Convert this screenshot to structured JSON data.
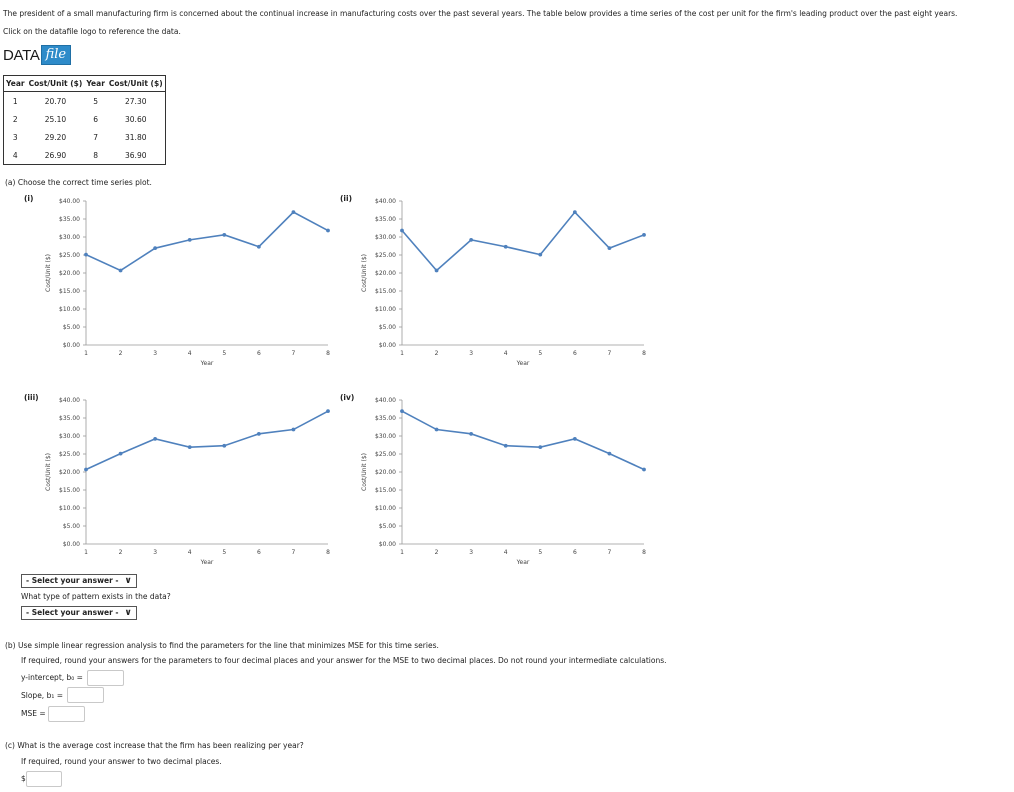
{
  "intro_text": "The president of a small manufacturing firm is concerned about the continual increase in manufacturing costs over the past several years. The table below provides a time series of the cost per unit for the firm's leading product over the past eight years.",
  "intro_link_text": "Click on the datafile logo to reference the data.",
  "datafile": {
    "label": "DATA",
    "file": "file"
  },
  "table": {
    "headers": [
      "Year",
      "Cost/Unit ($)",
      "Year",
      "Cost/Unit ($)"
    ],
    "rows": [
      [
        "1",
        "20.70",
        "5",
        "27.30"
      ],
      [
        "2",
        "25.10",
        "6",
        "30.60"
      ],
      [
        "3",
        "29.20",
        "7",
        "31.80"
      ],
      [
        "4",
        "26.90",
        "8",
        "36.90"
      ]
    ]
  },
  "part_a": {
    "prompt": "(a) Choose the correct time series plot.",
    "select_placeholder": "- Select your answer -",
    "pattern_question": "What type of pattern exists in the data?"
  },
  "chart_data": [
    {
      "id": "i",
      "label": "(i)",
      "type": "line",
      "x": [
        1,
        2,
        3,
        4,
        5,
        6,
        7,
        8
      ],
      "values": [
        25.1,
        20.7,
        26.9,
        29.2,
        30.6,
        27.3,
        36.9,
        31.8
      ],
      "xlabel": "Year",
      "ylabel": "Cost/Unit ($)",
      "yticks": [
        "$0.00",
        "$5.00",
        "$10.00",
        "$15.00",
        "$20.00",
        "$25.00",
        "$30.00",
        "$35.00",
        "$40.00"
      ],
      "ylim": [
        0,
        40
      ]
    },
    {
      "id": "ii",
      "label": "(ii)",
      "type": "line",
      "x": [
        1,
        2,
        3,
        4,
        5,
        6,
        7,
        8
      ],
      "values": [
        31.8,
        20.7,
        29.2,
        27.3,
        25.1,
        36.9,
        26.9,
        30.6
      ],
      "xlabel": "Year",
      "ylabel": "Cost/Unit ($)",
      "yticks": [
        "$0.00",
        "$5.00",
        "$10.00",
        "$15.00",
        "$20.00",
        "$25.00",
        "$30.00",
        "$35.00",
        "$40.00"
      ],
      "ylim": [
        0,
        40
      ]
    },
    {
      "id": "iii",
      "label": "(iii)",
      "type": "line",
      "x": [
        1,
        2,
        3,
        4,
        5,
        6,
        7,
        8
      ],
      "values": [
        20.7,
        25.1,
        29.2,
        26.9,
        27.3,
        30.6,
        31.8,
        36.9
      ],
      "xlabel": "Year",
      "ylabel": "Cost/Unit ($)",
      "yticks": [
        "$0.00",
        "$5.00",
        "$10.00",
        "$15.00",
        "$20.00",
        "$25.00",
        "$30.00",
        "$35.00",
        "$40.00"
      ],
      "ylim": [
        0,
        40
      ]
    },
    {
      "id": "iv",
      "label": "(iv)",
      "type": "line",
      "x": [
        1,
        2,
        3,
        4,
        5,
        6,
        7,
        8
      ],
      "values": [
        36.9,
        31.8,
        30.6,
        27.3,
        26.9,
        29.2,
        25.1,
        20.7
      ],
      "xlabel": "Year",
      "ylabel": "Cost/Unit ($)",
      "yticks": [
        "$0.00",
        "$5.00",
        "$10.00",
        "$15.00",
        "$20.00",
        "$25.00",
        "$30.00",
        "$35.00",
        "$40.00"
      ],
      "ylim": [
        0,
        40
      ]
    }
  ],
  "part_b": {
    "prompt": "(b) Use simple linear regression analysis to find the parameters for the line that minimizes MSE for this time series.",
    "instructions": "If required, round your answers for the parameters to four decimal places and your answer for the MSE to two decimal places. Do not round your intermediate calculations.",
    "intercept_label": "y-intercept, b₀ =",
    "slope_label": "Slope, b₁ =",
    "mse_label": "MSE ="
  },
  "part_c": {
    "prompt": "(c) What is the average cost increase that the firm has been realizing per year?",
    "instructions": "If required, round your answer to two decimal places.",
    "currency": "$"
  },
  "colors": {
    "line": "#4f81bd",
    "axis": "#999999",
    "datafile_bg": "#2e8bc9"
  }
}
